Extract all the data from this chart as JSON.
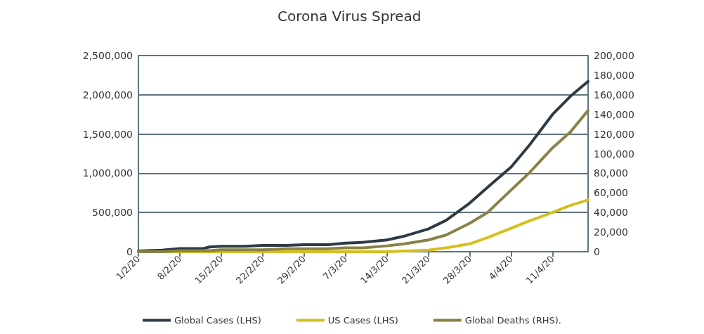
{
  "chart_data": {
    "type": "line",
    "title": "Corona Virus Spread",
    "x": [
      "--02-01",
      "--02-05",
      "--02-08",
      "--02-12",
      "--02-13",
      "--02-15",
      "--02-19",
      "--02-22",
      "--02-26",
      "--02-29",
      "--03-04",
      "--03-07",
      "--03-10",
      "--03-14",
      "--03-17",
      "--03-21",
      "--03-24",
      "--03-28",
      "--03-31",
      "--04-04",
      "--04-07",
      "--04-11",
      "--04-14",
      "--04-17"
    ],
    "series": [
      {
        "name": "Global Cases (LHS)",
        "color": "#2e3a44",
        "values": [
          10000,
          20000,
          40000,
          40000,
          60000,
          70000,
          70000,
          80000,
          80000,
          90000,
          90000,
          110000,
          120000,
          150000,
          200000,
          290000,
          400000,
          620000,
          820000,
          1080000,
          1350000,
          1750000,
          1980000,
          2170000
        ]
      },
      {
        "name": "US Cases (LHS)",
        "color": "#d4c01e",
        "values": [
          0,
          0,
          0,
          0,
          0,
          0,
          0,
          0,
          0,
          0,
          0,
          0,
          0,
          0,
          10000,
          20000,
          50000,
          100000,
          180000,
          300000,
          390000,
          500000,
          590000,
          660000
        ]
      },
      {
        "name": "Global Deaths (RHS).",
        "color": "#8a8246",
        "axis": "y2",
        "values": [
          0,
          0,
          1000,
          1000,
          1000,
          2000,
          2000,
          2000,
          3000,
          3000,
          3000,
          4000,
          4000,
          6000,
          8000,
          12000,
          17000,
          29000,
          40000,
          63000,
          80000,
          106000,
          122000,
          144000
        ]
      }
    ],
    "xlim": [
      "--02-01",
      "--04-17"
    ],
    "xticks": [
      {
        "value": "--02-01",
        "label": "1/2/20"
      },
      {
        "value": "--02-08",
        "label": "8/2/20"
      },
      {
        "value": "--02-15",
        "label": "15/2/20"
      },
      {
        "value": "--02-22",
        "label": "22/2/20"
      },
      {
        "value": "--02-29",
        "label": "29/2/20"
      },
      {
        "value": "--03-07",
        "label": "7/3/20"
      },
      {
        "value": "--03-14",
        "label": "14/3/20"
      },
      {
        "value": "--03-21",
        "label": "21/3/20"
      },
      {
        "value": "--03-28",
        "label": "28/3/20"
      },
      {
        "value": "--04-04",
        "label": "4/4/20"
      },
      {
        "value": "--04-11",
        "label": "11/4/20"
      }
    ],
    "ylim": [
      0,
      2500000
    ],
    "yticks": [
      0,
      {
        "value": 500000,
        "label": "500,000"
      },
      {
        "value": 1000000,
        "label": "1,000,000"
      },
      {
        "value": 1500000,
        "label": "1,500,000"
      },
      {
        "value": 2000000,
        "label": "2,000,000"
      },
      {
        "value": 2500000,
        "label": "2,500,000"
      }
    ],
    "y2lim": [
      0,
      200000
    ],
    "y2ticks": [
      0,
      {
        "value": 20000,
        "label": "20,000"
      },
      {
        "value": 40000,
        "label": "40,000"
      },
      {
        "value": 60000,
        "label": "60,000"
      },
      {
        "value": 80000,
        "label": "80,000"
      },
      {
        "value": 100000,
        "label": "100,000"
      },
      {
        "value": 120000,
        "label": "120,000"
      },
      {
        "value": 140000,
        "label": "140,000"
      },
      {
        "value": 160000,
        "label": "160,000"
      },
      {
        "value": 180000,
        "label": "180,000"
      },
      {
        "value": 200000,
        "label": "200,000"
      }
    ],
    "grid": "y",
    "legend": "bottom"
  }
}
